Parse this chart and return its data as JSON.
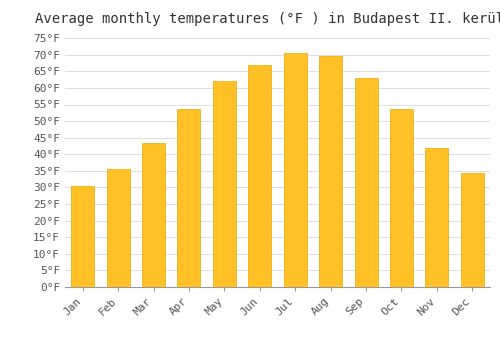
{
  "title": "Average monthly temperatures (°F ) in Budapest II. kerület",
  "months": [
    "Jan",
    "Feb",
    "Mar",
    "Apr",
    "May",
    "Jun",
    "Jul",
    "Aug",
    "Sep",
    "Oct",
    "Nov",
    "Dec"
  ],
  "values": [
    30.5,
    35.5,
    43.5,
    53.5,
    62.0,
    67.0,
    70.5,
    69.5,
    63.0,
    53.5,
    42.0,
    34.5
  ],
  "bar_color": "#FFC125",
  "bar_edge_color": "#E8A800",
  "background_color": "#FFFFFF",
  "grid_color": "#DDDDDD",
  "ylim": [
    0,
    77
  ],
  "ytick_step": 5,
  "title_fontsize": 10,
  "tick_fontsize": 8,
  "font_family": "monospace"
}
